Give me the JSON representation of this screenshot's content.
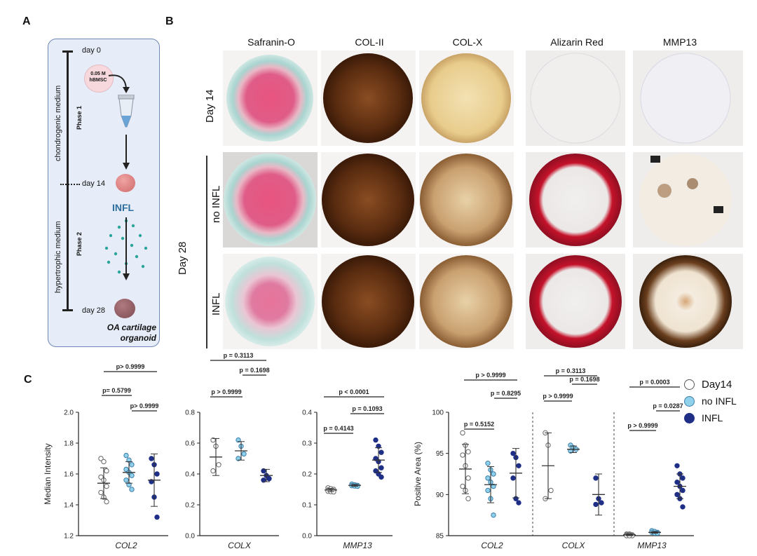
{
  "panels": {
    "a": "A",
    "b": "B",
    "c": "C"
  },
  "panelA": {
    "day0": "day 0",
    "cells_line1": "0.05 M",
    "cells_line2": "hBMSC",
    "medium1": "chondrogenic medium",
    "phase1": "Phase 1",
    "day14": "day 14",
    "infl": "INFL",
    "medium2": "hypertrophic medium",
    "phase2": "Phase 2",
    "day28": "day 28",
    "oa_line1": "OA cartilage",
    "oa_line2": "organoid"
  },
  "panelB": {
    "columns": [
      "Safranin-O",
      "COL-II",
      "COL-X",
      "Alizarin Red",
      "MMP13"
    ],
    "row_day14": "Day 14",
    "row_day28": "Day 28",
    "row_noinfl": "no INFL",
    "row_infl": "INFL"
  },
  "legend": [
    {
      "label": "Day14",
      "color": "#ffffff"
    },
    {
      "label": "no INFL",
      "color": "#8fd0ea"
    },
    {
      "label": "INFL",
      "color": "#1f2f86"
    }
  ],
  "chart_data": [
    {
      "type": "scatter",
      "xlabel": "COL2",
      "ylabel": "Median Intensity",
      "ylim": [
        1.2,
        2.0
      ],
      "yticks": [
        "1.2",
        "1.4",
        "1.6",
        "1.8",
        "2.0"
      ],
      "series": [
        {
          "name": "Day14",
          "values": [
            1.7,
            1.68,
            1.62,
            1.58,
            1.56,
            1.52,
            1.48,
            1.45,
            1.42
          ],
          "mean": 1.54,
          "sd": 0.1
        },
        {
          "name": "no INFL",
          "values": [
            1.72,
            1.69,
            1.66,
            1.63,
            1.61,
            1.59,
            1.56,
            1.53,
            1.5
          ],
          "mean": 1.61,
          "sd": 0.07
        },
        {
          "name": "INFL",
          "values": [
            1.7,
            1.66,
            1.6,
            1.55,
            1.45,
            1.32
          ],
          "mean": 1.56,
          "sd": 0.17
        }
      ],
      "annotations": [
        "p= 0.5799",
        "p> 0.9999",
        "p> 0.9999"
      ]
    },
    {
      "type": "scatter",
      "xlabel": "COLX",
      "ylabel": "",
      "ylim": [
        0.0,
        0.8
      ],
      "yticks": [
        "0.0",
        "0.2",
        "0.4",
        "0.6",
        "0.8"
      ],
      "series": [
        {
          "name": "Day14",
          "values": [
            0.62,
            0.58,
            0.46,
            0.42
          ],
          "mean": 0.51,
          "sd": 0.12
        },
        {
          "name": "no INFL",
          "values": [
            0.62,
            0.58,
            0.53,
            0.5
          ],
          "mean": 0.55,
          "sd": 0.06
        },
        {
          "name": "INFL",
          "values": [
            0.42,
            0.39,
            0.37,
            0.36
          ],
          "mean": 0.39,
          "sd": 0.04
        }
      ],
      "annotations": [
        "p > 0.9999",
        "p = 0.1698",
        "p = 0.3113"
      ]
    },
    {
      "type": "scatter",
      "xlabel": "MMP13",
      "ylabel": "",
      "ylim": [
        0.0,
        0.4
      ],
      "yticks": [
        "0.0",
        "0.1",
        "0.2",
        "0.3",
        "0.4"
      ],
      "series": [
        {
          "name": "Day14",
          "values": [
            0.155,
            0.152,
            0.15,
            0.148,
            0.146,
            0.145,
            0.144,
            0.143,
            0.142
          ],
          "mean": 0.148,
          "sd": 0.005
        },
        {
          "name": "no INFL",
          "values": [
            0.167,
            0.165,
            0.163,
            0.162,
            0.161,
            0.16
          ],
          "mean": 0.163,
          "sd": 0.003
        },
        {
          "name": "INFL",
          "values": [
            0.31,
            0.29,
            0.27,
            0.25,
            0.24,
            0.22,
            0.21,
            0.2,
            0.19
          ],
          "mean": 0.245,
          "sd": 0.04
        }
      ],
      "annotations": [
        "p = 0.4143",
        "p = 0.1093",
        "p < 0.0001"
      ]
    },
    {
      "type": "scatter",
      "ylabel": "Positive Area (%)",
      "ylim": [
        85,
        100
      ],
      "yticks": [
        "85",
        "90",
        "95",
        "100"
      ],
      "groups": [
        {
          "xlabel": "COL2",
          "series": [
            {
              "name": "Day14",
              "values": [
                97.5,
                96.0,
                95.2,
                94.8,
                93.5,
                92.0,
                91.0,
                90.5,
                89.5
              ],
              "mean": 93.1,
              "sd": 3.0
            },
            {
              "name": "no INFL",
              "values": [
                93.8,
                93.0,
                92.5,
                92.0,
                91.5,
                91.0,
                90.5,
                89.5,
                87.5
              ],
              "mean": 91.2,
              "sd": 2.2
            },
            {
              "name": "INFL",
              "values": [
                95.0,
                94.5,
                93.5,
                92.0,
                89.5,
                89.0
              ],
              "mean": 92.6,
              "sd": 3.0
            }
          ],
          "annotations": [
            "p = 0.5152",
            "p = 0.8295",
            "p > 0.9999"
          ]
        },
        {
          "xlabel": "COLX",
          "series": [
            {
              "name": "Day14",
              "values": [
                97.5,
                96.0,
                90.5,
                89.5
              ],
              "mean": 93.5,
              "sd": 4.0
            },
            {
              "name": "no INFL",
              "values": [
                96.0,
                95.7,
                95.5,
                95.3
              ],
              "mean": 95.5,
              "sd": 0.4
            },
            {
              "name": "INFL",
              "values": [
                92.0,
                89.5,
                89.0,
                88.8
              ],
              "mean": 90.0,
              "sd": 2.5
            }
          ],
          "annotations": [
            "p > 0.9999",
            "p = 0.1698",
            "p = 0.3113"
          ]
        },
        {
          "xlabel": "MMP13",
          "series": [
            {
              "name": "Day14",
              "values": [
                85.2,
                85.2,
                85.1,
                85.1,
                85.1,
                85.0,
                85.0,
                85.0
              ],
              "mean": 85.1,
              "sd": 0.1
            },
            {
              "name": "no INFL",
              "values": [
                85.6,
                85.5,
                85.4,
                85.4,
                85.3,
                85.3
              ],
              "mean": 85.4,
              "sd": 0.1
            },
            {
              "name": "INFL",
              "values": [
                93.5,
                92.5,
                92.0,
                91.5,
                91.0,
                90.5,
                90.0,
                89.5,
                88.5
              ],
              "mean": 91.0,
              "sd": 1.5
            }
          ],
          "annotations": [
            "p > 0.9999",
            "p = 0.0287",
            "p = 0.0003"
          ]
        }
      ]
    }
  ]
}
